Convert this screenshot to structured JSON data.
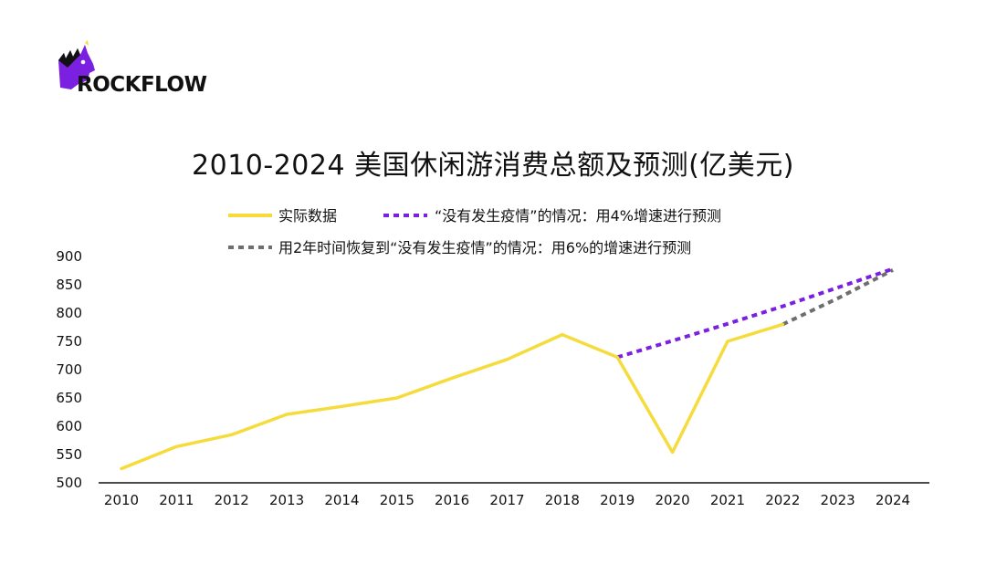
{
  "brand": {
    "logo_text": "ROCKFLOW"
  },
  "chart_data": {
    "type": "line",
    "title": "2010-2024 美国休闲游消费总额及预测(亿美元)",
    "xlabel": "",
    "ylabel": "",
    "x": [
      "2010",
      "2011",
      "2012",
      "2013",
      "2014",
      "2015",
      "2016",
      "2017",
      "2018",
      "2019",
      "2020",
      "2021",
      "2022",
      "2023",
      "2024"
    ],
    "ylim": [
      500,
      900
    ],
    "yticks": [
      500,
      550,
      600,
      650,
      700,
      750,
      800,
      850,
      900
    ],
    "grid": false,
    "legend_position": "top",
    "series": [
      {
        "name": "实际数据",
        "style": "solid",
        "color": "#F5DC3C",
        "x": [
          "2010",
          "2011",
          "2012",
          "2013",
          "2014",
          "2015",
          "2016",
          "2017",
          "2018",
          "2019",
          "2020",
          "2021",
          "2022"
        ],
        "values": [
          525,
          564,
          585,
          621,
          635,
          650,
          685,
          718,
          762,
          722,
          554,
          750,
          780
        ]
      },
      {
        "name": "“没有发生疫情”的情况：用4%增速进行预测",
        "style": "dotted",
        "color": "#7B1FE0",
        "x": [
          "2019",
          "2020",
          "2021",
          "2022",
          "2023",
          "2024"
        ],
        "values": [
          722,
          751,
          781,
          812,
          845,
          878
        ]
      },
      {
        "name": "用2年时间恢复到“没有发生疫情”的情况：用6%的增速进行预测",
        "style": "dotted",
        "color": "#6E6E6E",
        "x": [
          "2022",
          "2023",
          "2024"
        ],
        "values": [
          780,
          826,
          876
        ]
      }
    ]
  }
}
